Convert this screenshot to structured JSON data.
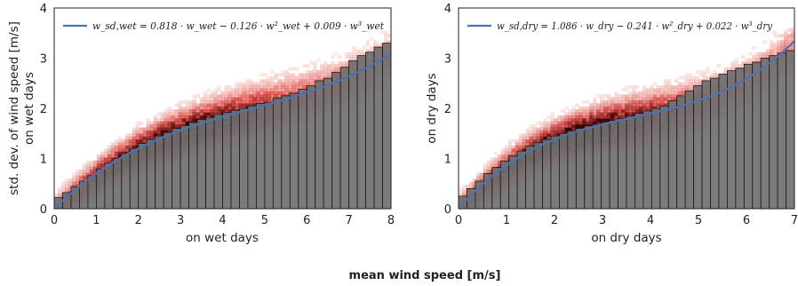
{
  "figure": {
    "suptitle": "mean wind speed [m/s]"
  },
  "colors": {
    "fit_line": "#4c72b0",
    "bar_fill": "#707070",
    "bar_edge": "#1a1a1a",
    "heat_low": "#fde0d6",
    "heat_high": "#3a0000"
  },
  "chart_data": [
    {
      "type": "bar",
      "panel": "wet",
      "xlabel": "on wet days",
      "ylabel_line1": "std. dev. of  wind speed [m/s]",
      "ylabel_line2": "on wet days",
      "xlim": [
        0,
        8
      ],
      "ylim": [
        0,
        4
      ],
      "xticks": [
        "0",
        "1",
        "2",
        "3",
        "4",
        "5",
        "6",
        "7",
        "8"
      ],
      "yticks": [
        "0",
        "1",
        "2",
        "3",
        "4"
      ],
      "grid": false,
      "legend_position": "top-left",
      "legend_label": "w_sd,wet = 0.818 · w_wet − 0.126 · w²_wet + 0.009 · w³_wet",
      "fit_coefficients": [
        0.818,
        -0.126,
        0.009
      ],
      "bar_width": 0.2,
      "bar_x": [
        0.1,
        0.3,
        0.5,
        0.7,
        0.9,
        1.1,
        1.3,
        1.5,
        1.7,
        1.9,
        2.1,
        2.3,
        2.5,
        2.7,
        2.9,
        3.1,
        3.3,
        3.5,
        3.7,
        3.9,
        4.1,
        4.3,
        4.5,
        4.7,
        4.9,
        5.1,
        5.3,
        5.5,
        5.7,
        5.9,
        6.1,
        6.3,
        6.5,
        6.7,
        6.9,
        7.1,
        7.3,
        7.5,
        7.7,
        7.9
      ],
      "bar_values": [
        0.22,
        0.32,
        0.44,
        0.55,
        0.66,
        0.79,
        0.91,
        1.0,
        1.1,
        1.2,
        1.3,
        1.38,
        1.45,
        1.52,
        1.6,
        1.66,
        1.72,
        1.78,
        1.82,
        1.88,
        1.92,
        1.96,
        2.0,
        2.05,
        2.1,
        2.12,
        2.2,
        2.25,
        2.3,
        2.38,
        2.45,
        2.55,
        2.6,
        2.72,
        2.82,
        2.95,
        3.05,
        3.12,
        3.22,
        3.3
      ],
      "density": {
        "x_range": [
          0,
          8
        ],
        "y_range": [
          0,
          3.6
        ]
      }
    },
    {
      "type": "bar",
      "panel": "dry",
      "xlabel": "on dry days",
      "ylabel_line1": "on dry days",
      "xlim": [
        0,
        7
      ],
      "ylim": [
        0,
        4
      ],
      "xticks": [
        "0",
        "1",
        "2",
        "3",
        "4",
        "5",
        "6",
        "7"
      ],
      "yticks": [
        "0",
        "1",
        "2",
        "3",
        "4"
      ],
      "grid": false,
      "legend_position": "top-left",
      "legend_label": "w_sd,dry = 1.086 · w_dry − 0.241 · w²_dry + 0.022 · w³_dry",
      "fit_coefficients": [
        1.086,
        -0.241,
        0.022
      ],
      "bar_width": 0.175,
      "bar_x": [
        0.0875,
        0.2625,
        0.4375,
        0.6125,
        0.7875,
        0.9625,
        1.1375,
        1.3125,
        1.4875,
        1.6625,
        1.8375,
        2.0125,
        2.1875,
        2.3625,
        2.5375,
        2.7125,
        2.8875,
        3.0625,
        3.2375,
        3.4125,
        3.5875,
        3.7625,
        3.9375,
        4.1125,
        4.2875,
        4.4625,
        4.6375,
        4.8125,
        4.9875,
        5.1625,
        5.3375,
        5.5125,
        5.6875,
        5.8625,
        6.0375,
        6.2125,
        6.3875,
        6.5625,
        6.7375,
        6.9125
      ],
      "bar_values": [
        0.25,
        0.4,
        0.55,
        0.7,
        0.82,
        0.95,
        1.05,
        1.15,
        1.25,
        1.32,
        1.38,
        1.45,
        1.5,
        1.55,
        1.6,
        1.65,
        1.68,
        1.72,
        1.76,
        1.8,
        1.85,
        1.9,
        1.95,
        2.0,
        2.05,
        2.15,
        2.25,
        2.35,
        2.45,
        2.55,
        2.6,
        2.68,
        2.75,
        2.8,
        2.88,
        2.92,
        3.0,
        3.05,
        3.1,
        3.15
      ],
      "density": {
        "x_range": [
          0,
          7
        ],
        "y_range": [
          0,
          3.6
        ]
      }
    }
  ]
}
